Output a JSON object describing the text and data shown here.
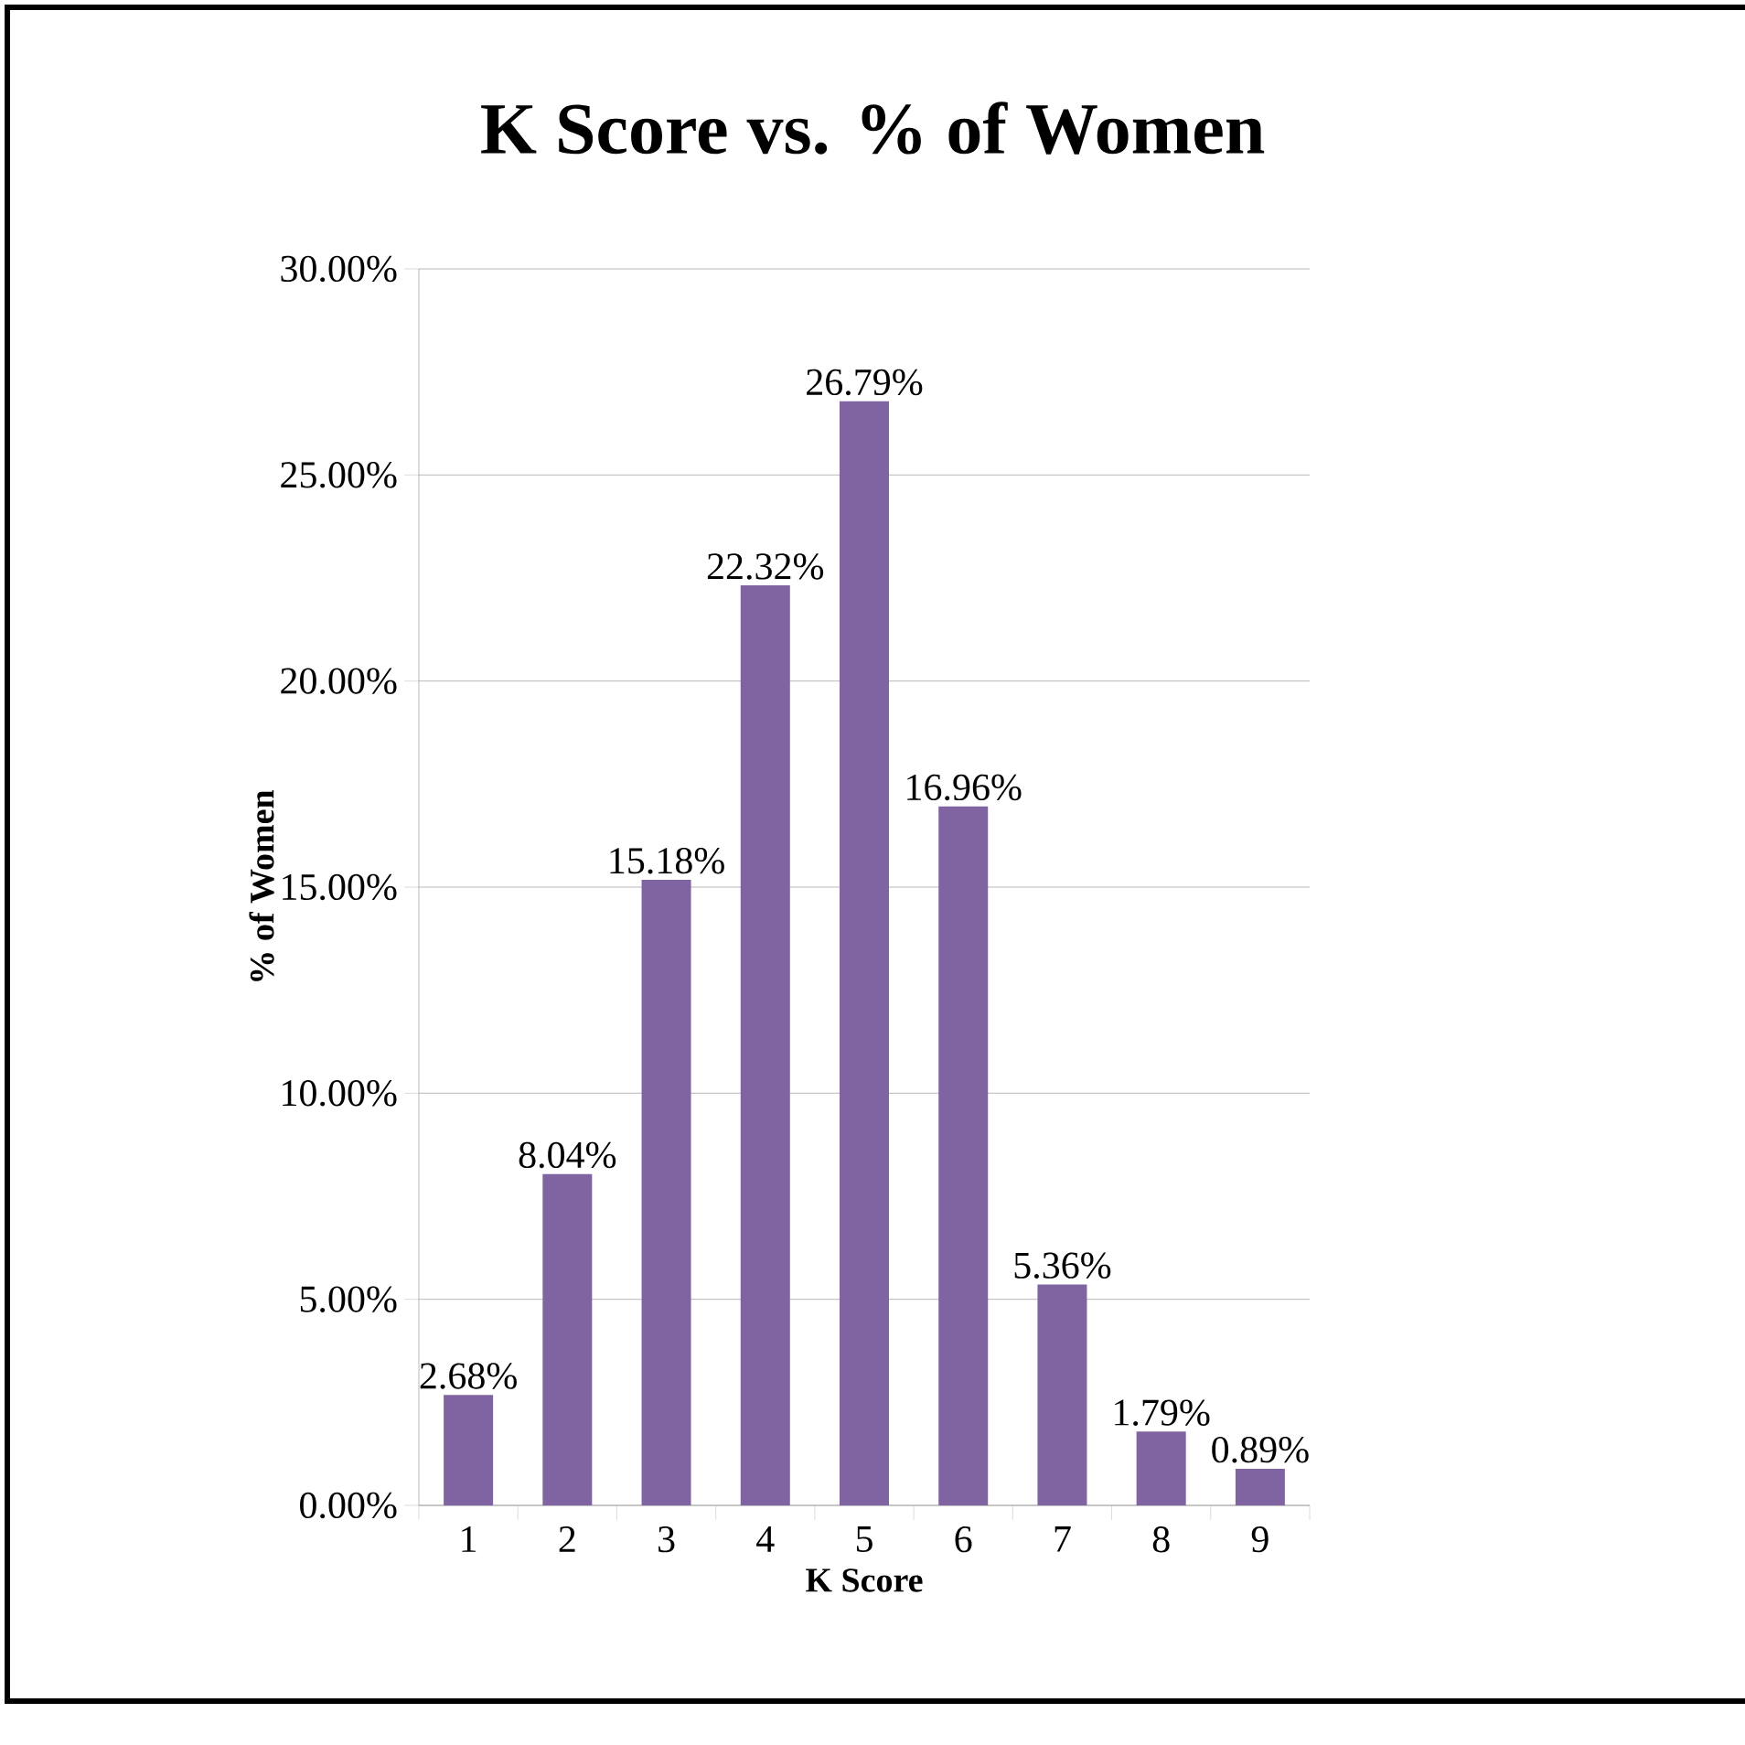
{
  "chart_data": {
    "type": "bar",
    "title": "K Score vs. % of Women",
    "xlabel": "K Score",
    "ylabel": "% of Women",
    "categories": [
      "1",
      "2",
      "3",
      "4",
      "5",
      "6",
      "7",
      "8",
      "9"
    ],
    "values": [
      2.68,
      8.04,
      15.18,
      22.32,
      26.79,
      16.96,
      5.36,
      1.79,
      0.89
    ],
    "value_labels": [
      "2.68%",
      "8.04%",
      "15.18%",
      "22.32%",
      "26.79%",
      "16.96%",
      "5.36%",
      "1.79%",
      "0.89%"
    ],
    "color": "#8064a2",
    "ylim": [
      0,
      30
    ],
    "yticks": [
      {
        "value": 0,
        "label": "0.00%"
      },
      {
        "value": 5,
        "label": "5.00%"
      },
      {
        "value": 10,
        "label": "10.00%"
      },
      {
        "value": 15,
        "label": "15.00%"
      },
      {
        "value": 20,
        "label": "20.00%"
      },
      {
        "value": 25,
        "label": "25.00%"
      },
      {
        "value": 30,
        "label": "30.00%"
      }
    ],
    "grid": "y"
  }
}
